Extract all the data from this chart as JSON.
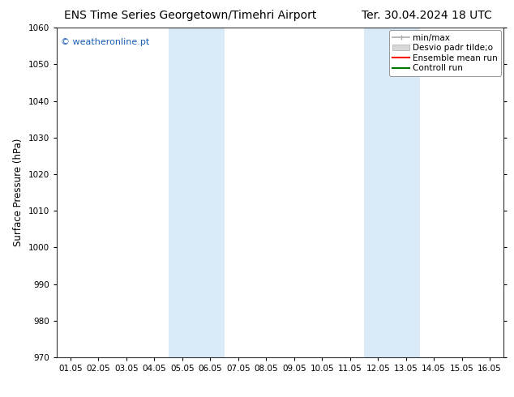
{
  "title_left": "ENS Time Series Georgetown/Timehri Airport",
  "title_right": "Ter. 30.04.2024 18 UTC",
  "ylabel": "Surface Pressure (hPa)",
  "ylim": [
    970,
    1060
  ],
  "yticks": [
    970,
    980,
    990,
    1000,
    1010,
    1020,
    1030,
    1040,
    1050,
    1060
  ],
  "xtick_labels": [
    "01.05",
    "02.05",
    "03.05",
    "04.05",
    "05.05",
    "06.05",
    "07.05",
    "08.05",
    "09.05",
    "10.05",
    "11.05",
    "12.05",
    "13.05",
    "14.05",
    "15.05",
    "16.05"
  ],
  "xtick_positions": [
    0,
    1,
    2,
    3,
    4,
    5,
    6,
    7,
    8,
    9,
    10,
    11,
    12,
    13,
    14,
    15
  ],
  "xlim": [
    -0.5,
    15.5
  ],
  "shaded_bands": [
    {
      "x_start": 3.5,
      "x_end": 5.5,
      "color": "#daeaf7"
    },
    {
      "x_start": 10.5,
      "x_end": 12.5,
      "color": "#daeaf7"
    }
  ],
  "legend_entries": [
    {
      "label": "min/max"
    },
    {
      "label": "Desvio padr tilde;o"
    },
    {
      "label": "Ensemble mean run"
    },
    {
      "label": "Controll run"
    }
  ],
  "legend_colors": [
    "#aaaaaa",
    "#cccccc",
    "#ff0000",
    "#007700"
  ],
  "watermark": "© weatheronline.pt",
  "watermark_color": "#1a5eb8",
  "bg_color": "#ffffff",
  "title_fontsize": 10,
  "tick_fontsize": 7.5,
  "ylabel_fontsize": 8.5,
  "legend_fontsize": 7.5,
  "watermark_fontsize": 8
}
